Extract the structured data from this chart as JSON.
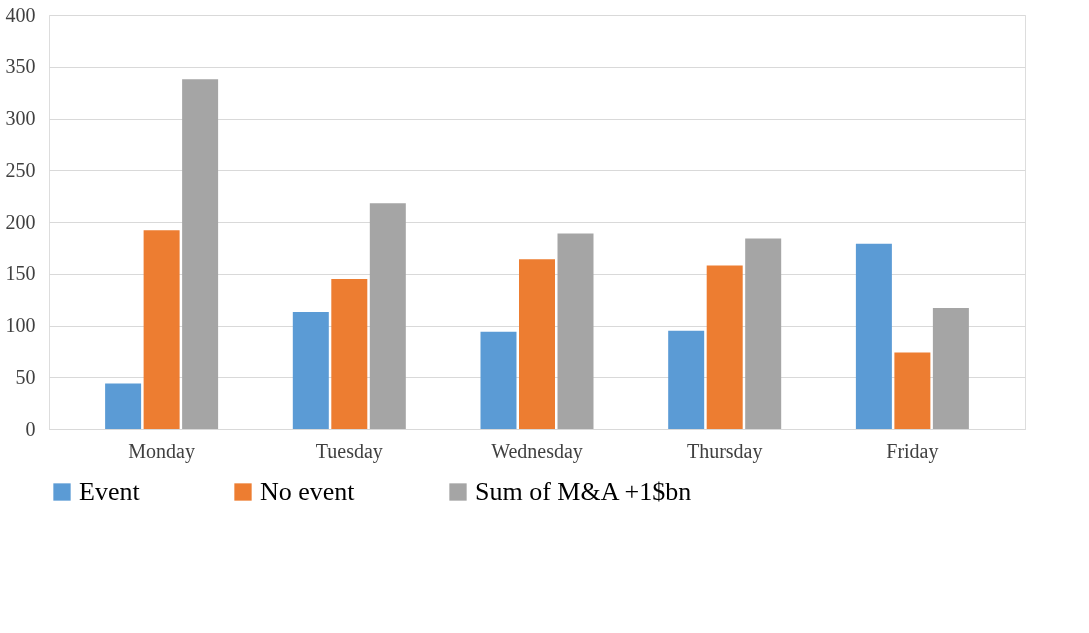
{
  "chart_data": {
    "type": "bar",
    "categories": [
      "Monday",
      "Tuesday",
      "Wednesday",
      "Thursday",
      "Friday"
    ],
    "series": [
      {
        "name": "Event",
        "color": "#5b9bd5",
        "values": [
          44,
          113,
          94,
          95,
          179
        ]
      },
      {
        "name": "No event",
        "color": "#ed7d31",
        "values": [
          192,
          145,
          164,
          158,
          74
        ]
      },
      {
        "name": "Sum of M&A +1$bn",
        "color": "#a5a5a5",
        "values": [
          338,
          218,
          189,
          184,
          117
        ]
      }
    ],
    "ylim": [
      0,
      400
    ],
    "yticks": [
      0,
      50,
      100,
      150,
      200,
      250,
      300,
      350,
      400
    ],
    "grid": "y",
    "legend": "bottom"
  }
}
